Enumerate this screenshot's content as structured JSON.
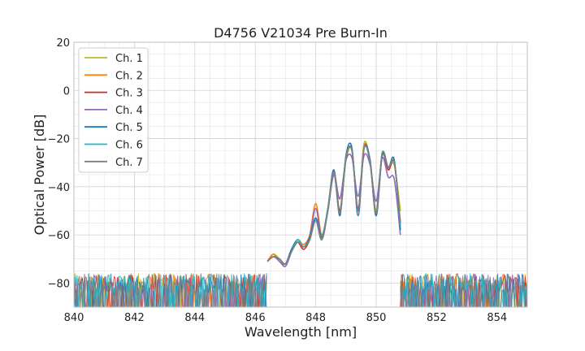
{
  "chart_data": {
    "type": "line",
    "title": "D4756 V21034 Pre Burn-In",
    "xlabel": "Wavelength [nm]",
    "ylabel": "Optical Power [dB]",
    "xlim": [
      840,
      855
    ],
    "ylim": [
      -90,
      20
    ],
    "xticks": [
      "840",
      "842",
      "844",
      "846",
      "848",
      "850",
      "852",
      "854"
    ],
    "yticks": [
      "20",
      "0",
      "−20",
      "−40",
      "−60",
      "−80"
    ],
    "grid": true,
    "legend_position": "top-left",
    "noise_floor": -80,
    "series": [
      {
        "name": "Ch. 1",
        "color": "#bcbd22",
        "points": [
          [
            846.4,
            -71
          ],
          [
            846.6,
            -68
          ],
          [
            846.8,
            -70
          ],
          [
            847.0,
            -72
          ],
          [
            847.2,
            -67
          ],
          [
            847.4,
            -63
          ],
          [
            847.6,
            -65
          ],
          [
            847.8,
            -62
          ],
          [
            848.0,
            -54
          ],
          [
            848.2,
            -62
          ],
          [
            848.4,
            -50
          ],
          [
            848.6,
            -35
          ],
          [
            848.8,
            -51
          ],
          [
            849.0,
            -29
          ],
          [
            849.2,
            -25
          ],
          [
            849.4,
            -50
          ],
          [
            849.6,
            -22
          ],
          [
            849.8,
            -30
          ],
          [
            850.0,
            -50
          ],
          [
            850.2,
            -26
          ],
          [
            850.4,
            -32
          ],
          [
            850.6,
            -31
          ],
          [
            850.8,
            -50
          ]
        ]
      },
      {
        "name": "Ch. 2",
        "color": "#ff7f0e",
        "points": [
          [
            846.4,
            -71
          ],
          [
            846.6,
            -68
          ],
          [
            846.8,
            -71
          ],
          [
            847.0,
            -72
          ],
          [
            847.2,
            -66
          ],
          [
            847.4,
            -62
          ],
          [
            847.6,
            -64
          ],
          [
            847.8,
            -60
          ],
          [
            848.0,
            -47
          ],
          [
            848.2,
            -60
          ],
          [
            848.4,
            -49
          ],
          [
            848.6,
            -33
          ],
          [
            848.8,
            -50
          ],
          [
            849.0,
            -28
          ],
          [
            849.2,
            -25
          ],
          [
            849.4,
            -50
          ],
          [
            849.6,
            -23
          ],
          [
            849.8,
            -30
          ],
          [
            850.0,
            -52
          ],
          [
            850.2,
            -27
          ],
          [
            850.4,
            -33
          ],
          [
            850.6,
            -30
          ],
          [
            850.8,
            -55
          ]
        ]
      },
      {
        "name": "Ch. 3",
        "color": "#d62728",
        "points": [
          [
            846.4,
            -71
          ],
          [
            846.6,
            -69
          ],
          [
            846.8,
            -70
          ],
          [
            847.0,
            -72
          ],
          [
            847.2,
            -66
          ],
          [
            847.4,
            -63
          ],
          [
            847.6,
            -66
          ],
          [
            847.8,
            -62
          ],
          [
            848.0,
            -53
          ],
          [
            848.2,
            -62
          ],
          [
            848.4,
            -50
          ],
          [
            848.6,
            -34
          ],
          [
            848.8,
            -50
          ],
          [
            849.0,
            -28
          ],
          [
            849.2,
            -25
          ],
          [
            849.4,
            -49
          ],
          [
            849.6,
            -24
          ],
          [
            849.8,
            -30
          ],
          [
            850.0,
            -51
          ],
          [
            850.2,
            -26
          ],
          [
            850.4,
            -33
          ],
          [
            850.6,
            -30
          ],
          [
            850.8,
            -56
          ]
        ]
      },
      {
        "name": "Ch. 4",
        "color": "#9467bd",
        "points": [
          [
            846.4,
            -71
          ],
          [
            846.6,
            -69
          ],
          [
            846.8,
            -71
          ],
          [
            847.0,
            -73
          ],
          [
            847.2,
            -67
          ],
          [
            847.4,
            -62
          ],
          [
            847.6,
            -65
          ],
          [
            847.8,
            -61
          ],
          [
            848.0,
            -49
          ],
          [
            848.2,
            -61
          ],
          [
            848.4,
            -50
          ],
          [
            848.6,
            -35
          ],
          [
            848.8,
            -45
          ],
          [
            849.0,
            -29
          ],
          [
            849.2,
            -28
          ],
          [
            849.4,
            -44
          ],
          [
            849.6,
            -27
          ],
          [
            849.8,
            -31
          ],
          [
            850.0,
            -46
          ],
          [
            850.2,
            -28
          ],
          [
            850.4,
            -36
          ],
          [
            850.6,
            -37
          ],
          [
            850.8,
            -60
          ]
        ]
      },
      {
        "name": "Ch. 5",
        "color": "#1f77b4",
        "points": [
          [
            846.4,
            -71
          ],
          [
            846.6,
            -69
          ],
          [
            846.8,
            -70
          ],
          [
            847.0,
            -72
          ],
          [
            847.2,
            -66
          ],
          [
            847.4,
            -62
          ],
          [
            847.6,
            -65
          ],
          [
            847.8,
            -61
          ],
          [
            848.0,
            -53
          ],
          [
            848.2,
            -61
          ],
          [
            848.4,
            -49
          ],
          [
            848.6,
            -33
          ],
          [
            848.8,
            -52
          ],
          [
            849.0,
            -27
          ],
          [
            849.2,
            -24
          ],
          [
            849.4,
            -52
          ],
          [
            849.6,
            -24
          ],
          [
            849.8,
            -29
          ],
          [
            850.0,
            -52
          ],
          [
            850.2,
            -27
          ],
          [
            850.4,
            -32
          ],
          [
            850.6,
            -29
          ],
          [
            850.8,
            -58
          ]
        ]
      },
      {
        "name": "Ch. 6",
        "color": "#17becf",
        "points": [
          [
            846.4,
            -71
          ],
          [
            846.6,
            -69
          ],
          [
            846.8,
            -70
          ],
          [
            847.0,
            -72
          ],
          [
            847.2,
            -67
          ],
          [
            847.4,
            -62
          ],
          [
            847.6,
            -65
          ],
          [
            847.8,
            -62
          ],
          [
            848.0,
            -54
          ],
          [
            848.2,
            -62
          ],
          [
            848.4,
            -49
          ],
          [
            848.6,
            -34
          ],
          [
            848.8,
            -51
          ],
          [
            849.0,
            -28
          ],
          [
            849.2,
            -25
          ],
          [
            849.4,
            -50
          ],
          [
            849.6,
            -24
          ],
          [
            849.8,
            -30
          ],
          [
            850.0,
            -51
          ],
          [
            850.2,
            -26
          ],
          [
            850.4,
            -32
          ],
          [
            850.6,
            -30
          ],
          [
            850.8,
            -56
          ]
        ]
      },
      {
        "name": "Ch. 7",
        "color": "#7f7f7f",
        "points": [
          [
            846.4,
            -71
          ],
          [
            846.6,
            -69
          ],
          [
            846.8,
            -70
          ],
          [
            847.0,
            -72
          ],
          [
            847.2,
            -67
          ],
          [
            847.4,
            -63
          ],
          [
            847.6,
            -65
          ],
          [
            847.8,
            -62
          ],
          [
            848.0,
            -54
          ],
          [
            848.2,
            -62
          ],
          [
            848.4,
            -50
          ],
          [
            848.6,
            -34
          ],
          [
            848.8,
            -51
          ],
          [
            849.0,
            -28
          ],
          [
            849.2,
            -25
          ],
          [
            849.4,
            -50
          ],
          [
            849.6,
            -24
          ],
          [
            849.8,
            -30
          ],
          [
            850.0,
            -51
          ],
          [
            850.2,
            -26
          ],
          [
            850.4,
            -32
          ],
          [
            850.6,
            -30
          ],
          [
            850.8,
            -55
          ]
        ]
      }
    ]
  }
}
